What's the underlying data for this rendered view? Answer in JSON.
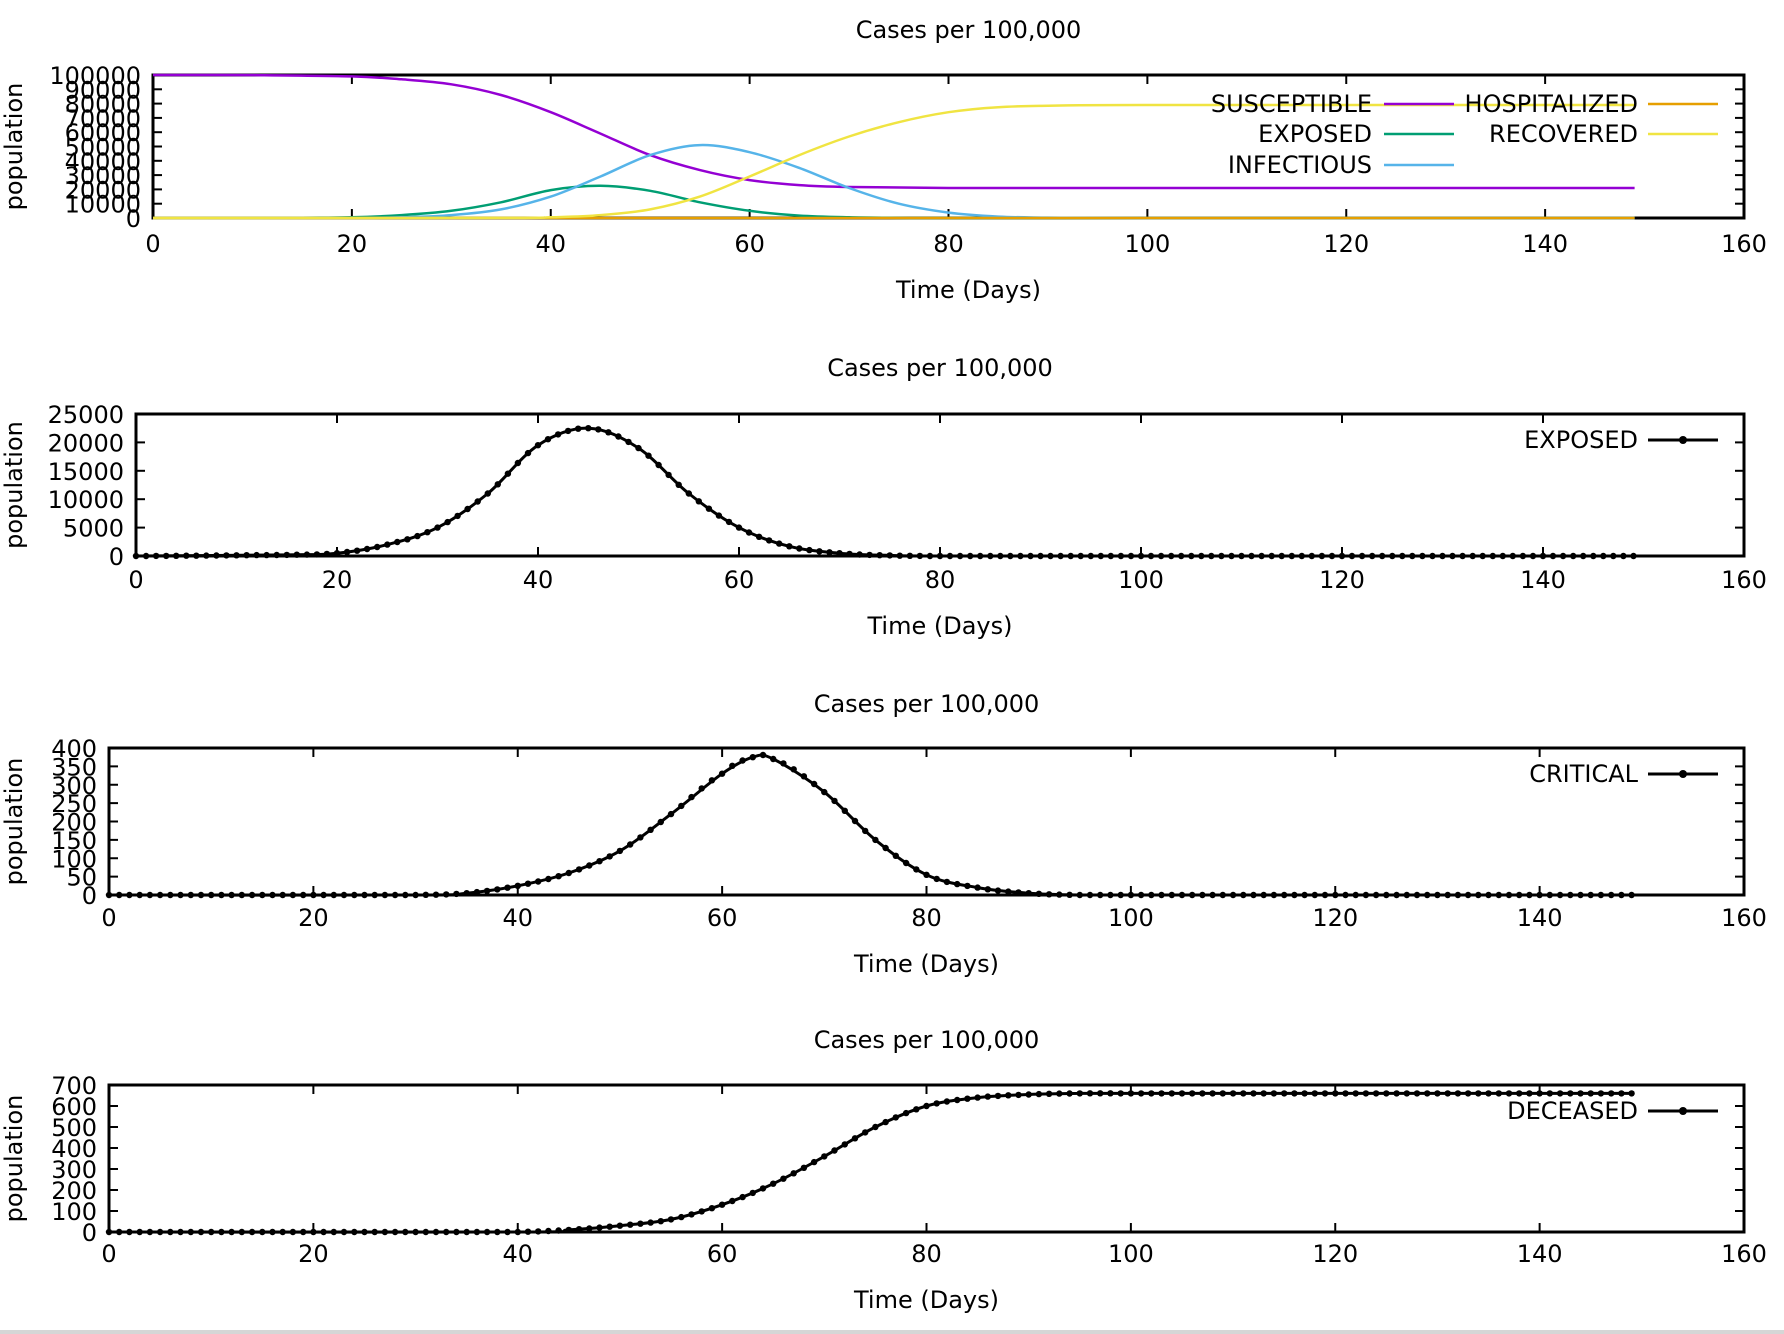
{
  "chart_data": [
    {
      "type": "line",
      "title": "Cases per 100,000",
      "xlabel": "Time (Days)",
      "ylabel": "population",
      "xlim": [
        0,
        160
      ],
      "ylim": [
        0,
        100000
      ],
      "xticks": [
        "0",
        "20",
        "40",
        "60",
        "80",
        "100",
        "120",
        "140",
        "160"
      ],
      "yticks": [
        "0",
        "10000",
        "20000",
        "30000",
        "40000",
        "50000",
        "60000",
        "70000",
        "80000",
        "90000",
        "100000"
      ],
      "grid": false,
      "legend_position": "top-right",
      "series": [
        {
          "name": "SUSCEPTIBLE",
          "color": "#9400d3",
          "x": [
            0,
            10,
            20,
            25,
            30,
            35,
            40,
            45,
            50,
            55,
            60,
            65,
            70,
            80,
            100,
            149
          ],
          "y": [
            100000,
            99900,
            99000,
            97000,
            93500,
            86000,
            74000,
            59000,
            44000,
            33500,
            26500,
            23000,
            21700,
            21000,
            21000,
            21000
          ]
        },
        {
          "name": "EXPOSED",
          "color": "#009e73",
          "x": [
            0,
            15,
            20,
            25,
            30,
            35,
            40,
            45,
            50,
            55,
            60,
            65,
            70,
            75,
            80,
            100,
            149
          ],
          "y": [
            0,
            200,
            500,
            2000,
            5000,
            11000,
            19500,
            22500,
            19000,
            11000,
            5000,
            1700,
            500,
            100,
            0,
            0,
            0
          ]
        },
        {
          "name": "INFECTIOUS",
          "color": "#56b4e9",
          "x": [
            0,
            20,
            25,
            30,
            35,
            40,
            45,
            50,
            55,
            60,
            65,
            70,
            75,
            80,
            85,
            90,
            100,
            149
          ],
          "y": [
            0,
            100,
            500,
            2000,
            6000,
            15000,
            29000,
            44000,
            51000,
            46000,
            35000,
            21000,
            10000,
            3800,
            1000,
            300,
            0,
            0
          ]
        },
        {
          "name": "HOSPITALIZED",
          "color": "#e69f00",
          "x": [
            0,
            149
          ],
          "y": [
            0,
            0
          ]
        },
        {
          "name": "RECOVERED",
          "color": "#f0e442",
          "x": [
            0,
            35,
            40,
            45,
            50,
            55,
            60,
            65,
            70,
            75,
            80,
            85,
            90,
            100,
            149
          ],
          "y": [
            0,
            100,
            500,
            2000,
            6000,
            15000,
            29000,
            44000,
            57000,
            67000,
            74000,
            77500,
            78500,
            79000,
            79000
          ]
        }
      ]
    },
    {
      "type": "line",
      "title": "Cases per 100,000",
      "xlabel": "Time (Days)",
      "ylabel": "population",
      "xlim": [
        0,
        160
      ],
      "ylim": [
        0,
        25000
      ],
      "xticks": [
        "0",
        "20",
        "40",
        "60",
        "80",
        "100",
        "120",
        "140",
        "160"
      ],
      "yticks": [
        "0",
        "5000",
        "10000",
        "15000",
        "20000",
        "25000"
      ],
      "grid": false,
      "legend_position": "top-right",
      "series": [
        {
          "name": "EXPOSED",
          "color": "#000000",
          "x": [
            0,
            15,
            20,
            25,
            30,
            35,
            40,
            45,
            50,
            55,
            60,
            65,
            70,
            75,
            80,
            100,
            149
          ],
          "y": [
            0,
            200,
            500,
            2000,
            5000,
            11000,
            19500,
            22500,
            19000,
            11000,
            5000,
            1700,
            500,
            100,
            0,
            0,
            0
          ]
        }
      ]
    },
    {
      "type": "line",
      "title": "Cases per 100,000",
      "xlabel": "Time (Days)",
      "ylabel": "population",
      "xlim": [
        0,
        160
      ],
      "ylim": [
        0,
        400
      ],
      "xticks": [
        "0",
        "20",
        "40",
        "60",
        "80",
        "100",
        "120",
        "140",
        "160"
      ],
      "yticks": [
        "0",
        "50",
        "100",
        "150",
        "200",
        "250",
        "300",
        "350",
        "400"
      ],
      "grid": false,
      "legend_position": "top-right",
      "series": [
        {
          "name": "CRITICAL",
          "color": "#000000",
          "x": [
            0,
            30,
            35,
            40,
            45,
            50,
            55,
            60,
            63,
            65,
            70,
            75,
            80,
            85,
            90,
            95,
            100,
            149
          ],
          "y": [
            0,
            0,
            5,
            25,
            60,
            120,
            220,
            330,
            375,
            370,
            280,
            150,
            55,
            20,
            5,
            0,
            0,
            0
          ]
        }
      ]
    },
    {
      "type": "line",
      "title": "Cases per 100,000",
      "xlabel": "Time (Days)",
      "ylabel": "population",
      "xlim": [
        0,
        160
      ],
      "ylim": [
        0,
        700
      ],
      "xticks": [
        "0",
        "20",
        "40",
        "60",
        "80",
        "100",
        "120",
        "140",
        "160"
      ],
      "yticks": [
        "0",
        "100",
        "200",
        "300",
        "400",
        "500",
        "600",
        "700"
      ],
      "grid": false,
      "legend_position": "top-right",
      "series": [
        {
          "name": "DECEASED",
          "color": "#000000",
          "x": [
            0,
            40,
            45,
            50,
            55,
            60,
            65,
            70,
            75,
            80,
            85,
            90,
            95,
            100,
            149
          ],
          "y": [
            0,
            0,
            10,
            30,
            60,
            130,
            230,
            360,
            500,
            600,
            640,
            655,
            660,
            660,
            660
          ]
        }
      ]
    }
  ]
}
